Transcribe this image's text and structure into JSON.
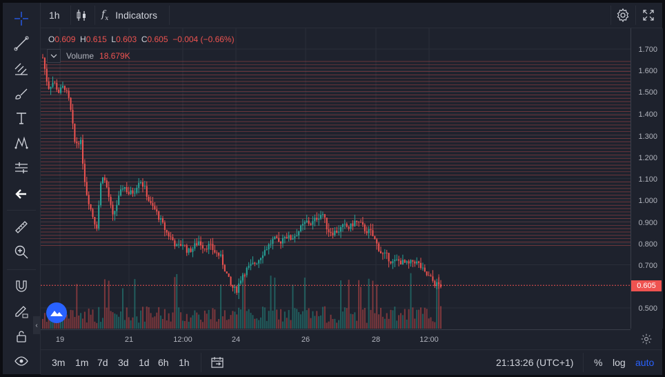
{
  "toolbar_top": {
    "interval": "1h",
    "indicators_label": "Indicators"
  },
  "legend": {
    "o_label": "O",
    "o_value": "0.609",
    "h_label": "H",
    "h_value": "0.615",
    "l_label": "L",
    "l_value": "0.603",
    "c_label": "C",
    "c_value": "0.605",
    "change": "−0.004 (−0.66%)"
  },
  "volume": {
    "label": "Volume",
    "value": "18.679K"
  },
  "price_axis": {
    "ticks": [
      "1.700",
      "1.600",
      "1.500",
      "1.400",
      "1.300",
      "1.200",
      "1.100",
      "1.000",
      "0.900",
      "0.800",
      "0.700",
      "0.500"
    ],
    "current_price": "0.605"
  },
  "time_axis": {
    "labels": [
      "19",
      "21",
      "12:00",
      "24",
      "26",
      "28",
      "12:00"
    ]
  },
  "bottom_toolbar": {
    "ranges": [
      "3m",
      "1m",
      "7d",
      "3d",
      "1d",
      "6h",
      "1h"
    ],
    "clock": "21:13:26 (UTC+1)",
    "percent": "%",
    "log": "log",
    "auto": "auto"
  },
  "colors": {
    "up": "#26a69a",
    "down": "#ef5350",
    "accent": "#2962ff",
    "background": "#1e222d"
  },
  "left_tools": [
    "crosshair-icon",
    "trend-line-icon",
    "fib-icon",
    "brush-icon",
    "text-icon",
    "pattern-icon",
    "prediction-icon",
    "back-arrow-icon",
    "ruler-icon",
    "zoom-in-icon",
    "magnet-icon",
    "lock-pencil-icon",
    "lock-icon",
    "eye-icon"
  ],
  "chart_data": {
    "type": "candlestick",
    "interval": "1h",
    "ylim": [
      0.45,
      1.75
    ],
    "x_labels": [
      "19",
      "21",
      "12:00",
      "24",
      "26",
      "28",
      "12:00"
    ],
    "last_close": 0.605,
    "ohlc_last": {
      "open": 0.609,
      "high": 0.615,
      "low": 0.603,
      "close": 0.605
    },
    "volume_last": "18.679K",
    "price_path": [
      1.66,
      1.52,
      1.55,
      1.5,
      1.53,
      1.45,
      1.26,
      1.28,
      1.05,
      0.95,
      0.87,
      1.13,
      1.05,
      0.92,
      1.0,
      1.07,
      1.03,
      1.04,
      1.1,
      1.05,
      0.98,
      0.95,
      0.9,
      0.85,
      0.82,
      0.78,
      0.8,
      0.76,
      0.78,
      0.81,
      0.78,
      0.79,
      0.76,
      0.74,
      0.67,
      0.6,
      0.58,
      0.65,
      0.68,
      0.7,
      0.72,
      0.76,
      0.79,
      0.82,
      0.8,
      0.84,
      0.82,
      0.84,
      0.87,
      0.9,
      0.89,
      0.92,
      0.94,
      0.86,
      0.85,
      0.86,
      0.88,
      0.87,
      0.9,
      0.89,
      0.86,
      0.85,
      0.8,
      0.75,
      0.74,
      0.71,
      0.72,
      0.71,
      0.7,
      0.72,
      0.7,
      0.66,
      0.64,
      0.61,
      0.605
    ]
  }
}
